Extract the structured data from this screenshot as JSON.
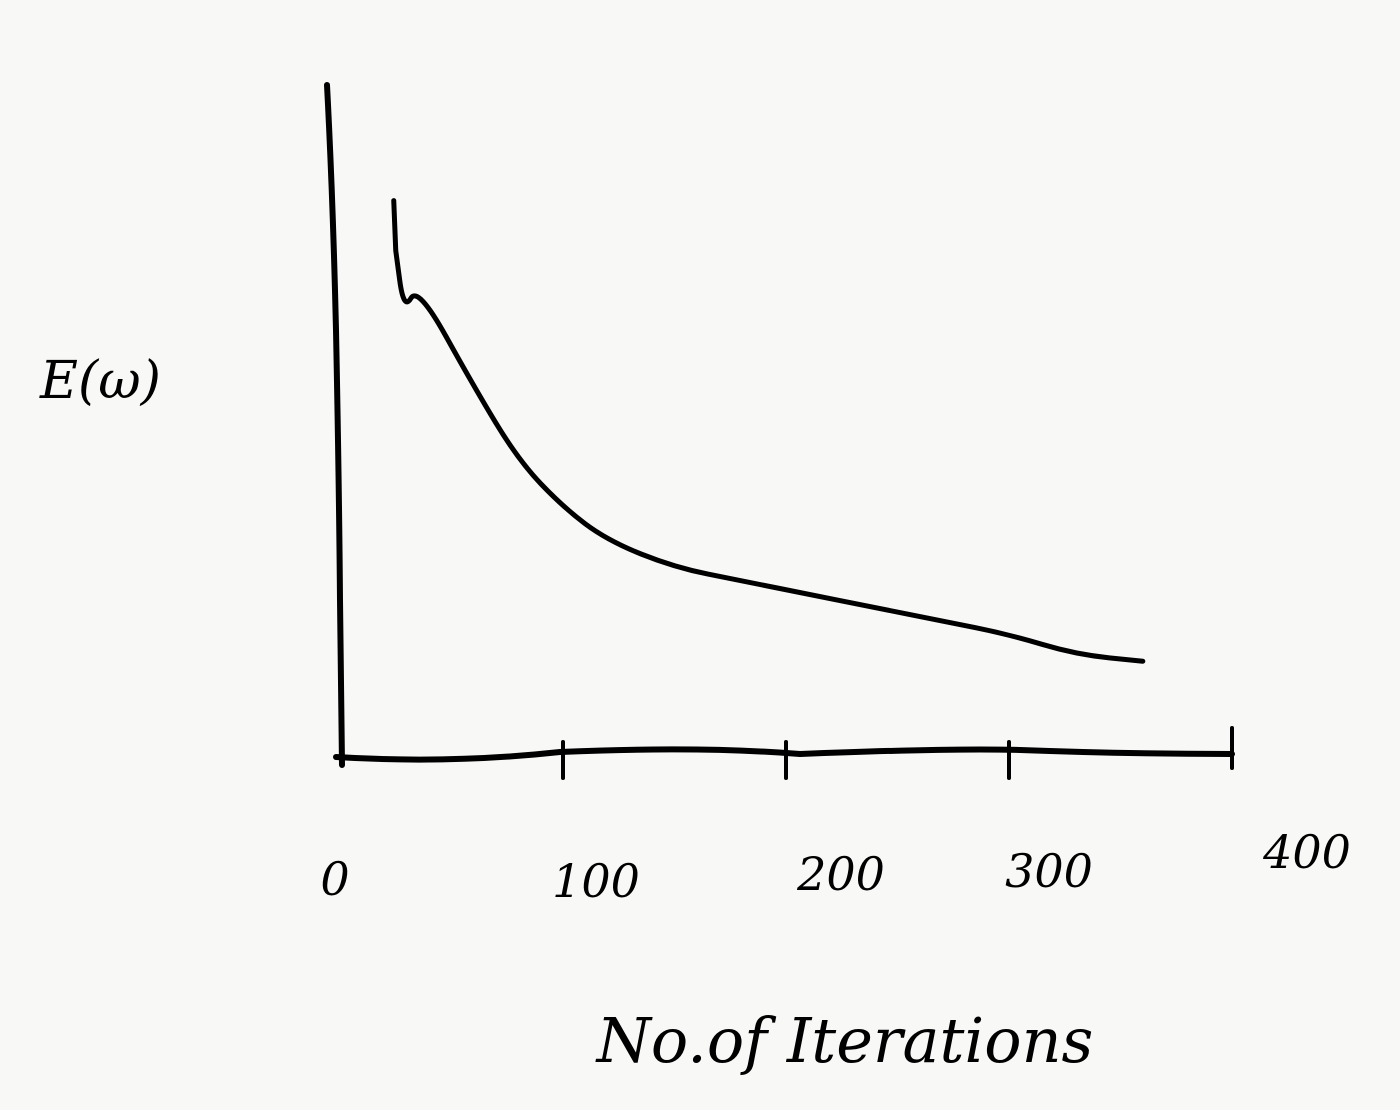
{
  "chart_data": {
    "type": "line",
    "title": "",
    "xlabel": "No.of Iterations",
    "ylabel": "E(ω)",
    "xlim": [
      0,
      400
    ],
    "ylim": [
      0,
      100
    ],
    "x_ticks": [
      "0",
      "100",
      "200",
      "300",
      "400"
    ],
    "x_tick_values": [
      0,
      100,
      200,
      300,
      400
    ],
    "grid": false,
    "series": [
      {
        "x": [
          25,
          35,
          60,
          80,
          100,
          120,
          150,
          180,
          210,
          240,
          270,
          300,
          330,
          360
        ],
        "y": [
          82,
          70,
          55,
          44,
          37,
          32,
          28,
          26,
          24,
          22,
          20,
          18,
          15,
          14
        ]
      }
    ],
    "color": "#000000"
  }
}
